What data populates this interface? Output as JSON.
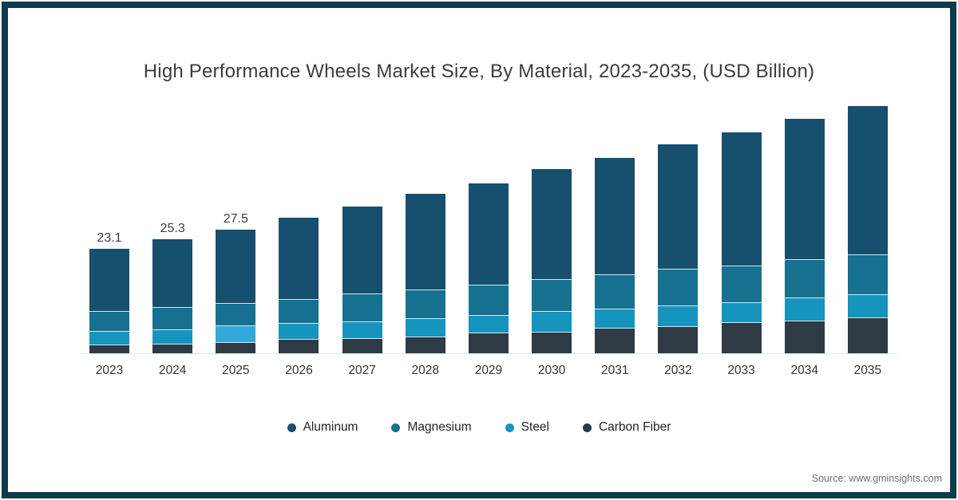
{
  "frame": {
    "border_color": "#0d3c4d",
    "background": "#ffffff"
  },
  "chart_data": {
    "type": "bar",
    "stacked": true,
    "title": "High Performance Wheels Market Size, By Material, 2023-2035, (USD Billion)",
    "unit": "USD Billion",
    "categories": [
      "2023",
      "2024",
      "2025",
      "2026",
      "2027",
      "2028",
      "2029",
      "2030",
      "2031",
      "2032",
      "2033",
      "2034",
      "2035"
    ],
    "series": [
      {
        "name": "Aluminum",
        "color": "#174f6e",
        "values": [
          13.8,
          15.0,
          16.3,
          18.1,
          19.3,
          21.2,
          22.5,
          24.4,
          25.8,
          27.6,
          29.6,
          31.1,
          33.0
        ]
      },
      {
        "name": "Magnesium",
        "color": "#15718f",
        "values": [
          4.4,
          5.0,
          5.0,
          5.3,
          6.2,
          6.4,
          6.7,
          7.1,
          7.6,
          8.1,
          8.1,
          8.5,
          8.8
        ]
      },
      {
        "name": "Steel",
        "color": "#1594be",
        "values": [
          3.0,
          3.2,
          3.7,
          3.5,
          3.7,
          4.1,
          3.9,
          4.6,
          4.2,
          4.6,
          4.4,
          5.1,
          5.1
        ]
      },
      {
        "name": "Carbon Fiber",
        "color": "#2e3a44",
        "values": [
          1.9,
          2.1,
          2.5,
          3.2,
          3.4,
          3.7,
          4.6,
          4.8,
          5.7,
          6.0,
          6.9,
          7.3,
          8.0
        ]
      }
    ],
    "totals": [
      23.1,
      25.3,
      27.5,
      30.1,
      32.6,
      35.4,
      37.7,
      40.9,
      43.3,
      46.3,
      49.0,
      52.0,
      54.9
    ],
    "value_labels": [
      "23.1",
      "25.3",
      "27.5",
      "",
      "",
      "",
      "",
      "",
      "",
      "",
      "",
      "",
      ""
    ],
    "highlight": {
      "category": "2025",
      "series": "Steel",
      "color": "#33a9da"
    },
    "ylim": [
      0,
      57
    ],
    "grid": false,
    "legend_position": "bottom",
    "legend": [
      "Aluminum",
      "Magnesium",
      "Steel",
      "Carbon Fiber"
    ],
    "axis_line_color": "#dde4ee",
    "separator_color": "#cfe9f5"
  },
  "source": {
    "text": "Source: www.gminsights.com"
  }
}
